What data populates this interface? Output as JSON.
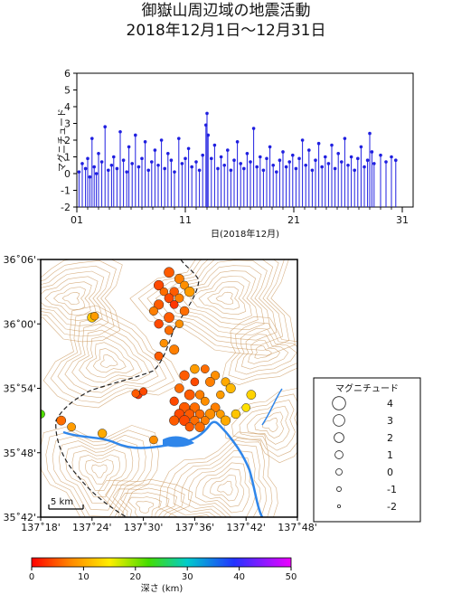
{
  "title_line1": "御嶽山周辺域の地震活動",
  "title_line2": "2018年12月1日〜12月31日",
  "chart_data": [
    {
      "type": "stem",
      "ylabel": "マグニチュード",
      "xlabel": "日(2018年12月)",
      "x_ticks": [
        "01",
        "11",
        "21",
        "31"
      ],
      "x_tick_values": [
        1,
        11,
        21,
        31
      ],
      "xlim": [
        1,
        32
      ],
      "ylim": [
        -2,
        6
      ],
      "y_ticks": [
        -2,
        -1,
        0,
        1,
        2,
        3,
        4,
        5,
        6
      ],
      "color": "#1f1fe0",
      "events": [
        [
          1.2,
          0.1
        ],
        [
          1.5,
          0.6
        ],
        [
          1.8,
          0.3
        ],
        [
          2.0,
          0.9
        ],
        [
          2.2,
          -0.2
        ],
        [
          2.4,
          2.1
        ],
        [
          2.6,
          0.4
        ],
        [
          2.8,
          0.0
        ],
        [
          3.0,
          1.2
        ],
        [
          3.3,
          0.7
        ],
        [
          3.6,
          2.8
        ],
        [
          3.9,
          0.2
        ],
        [
          4.2,
          0.5
        ],
        [
          4.4,
          1.0
        ],
        [
          4.7,
          0.3
        ],
        [
          5.0,
          2.5
        ],
        [
          5.3,
          0.8
        ],
        [
          5.6,
          0.1
        ],
        [
          5.8,
          1.6
        ],
        [
          6.1,
          0.6
        ],
        [
          6.4,
          2.3
        ],
        [
          6.7,
          0.4
        ],
        [
          7.0,
          0.9
        ],
        [
          7.3,
          1.9
        ],
        [
          7.6,
          0.2
        ],
        [
          7.9,
          0.7
        ],
        [
          8.2,
          1.4
        ],
        [
          8.5,
          0.5
        ],
        [
          8.8,
          2.0
        ],
        [
          9.1,
          0.3
        ],
        [
          9.4,
          1.2
        ],
        [
          9.7,
          0.8
        ],
        [
          10.0,
          0.1
        ],
        [
          10.4,
          2.1
        ],
        [
          10.7,
          0.6
        ],
        [
          11.0,
          0.9
        ],
        [
          11.3,
          1.5
        ],
        [
          11.6,
          0.4
        ],
        [
          12.0,
          0.7
        ],
        [
          12.3,
          0.2
        ],
        [
          12.6,
          1.1
        ],
        [
          12.9,
          2.9
        ],
        [
          13.0,
          3.6
        ],
        [
          13.1,
          2.3
        ],
        [
          13.4,
          0.9
        ],
        [
          13.7,
          1.7
        ],
        [
          14.0,
          0.3
        ],
        [
          14.3,
          1.0
        ],
        [
          14.6,
          0.5
        ],
        [
          14.9,
          1.4
        ],
        [
          15.2,
          0.2
        ],
        [
          15.5,
          0.8
        ],
        [
          15.8,
          1.9
        ],
        [
          16.1,
          0.6
        ],
        [
          16.4,
          0.3
        ],
        [
          16.7,
          1.2
        ],
        [
          17.0,
          0.7
        ],
        [
          17.3,
          2.7
        ],
        [
          17.6,
          0.4
        ],
        [
          17.9,
          1.0
        ],
        [
          18.2,
          0.2
        ],
        [
          18.5,
          0.9
        ],
        [
          18.8,
          1.6
        ],
        [
          19.1,
          0.5
        ],
        [
          19.4,
          0.1
        ],
        [
          19.7,
          0.8
        ],
        [
          20.0,
          1.3
        ],
        [
          20.3,
          0.4
        ],
        [
          20.6,
          0.7
        ],
        [
          20.9,
          1.1
        ],
        [
          21.2,
          0.3
        ],
        [
          21.5,
          0.9
        ],
        [
          21.8,
          2.0
        ],
        [
          22.1,
          0.5
        ],
        [
          22.4,
          1.4
        ],
        [
          22.7,
          0.2
        ],
        [
          23.0,
          0.8
        ],
        [
          23.3,
          1.8
        ],
        [
          23.6,
          0.4
        ],
        [
          23.9,
          1.0
        ],
        [
          24.2,
          0.6
        ],
        [
          24.5,
          1.7
        ],
        [
          24.8,
          0.3
        ],
        [
          25.1,
          1.2
        ],
        [
          25.4,
          0.7
        ],
        [
          25.7,
          2.1
        ],
        [
          26.0,
          0.5
        ],
        [
          26.3,
          1.0
        ],
        [
          26.6,
          0.2
        ],
        [
          26.9,
          0.9
        ],
        [
          27.2,
          1.6
        ],
        [
          27.5,
          0.4
        ],
        [
          27.8,
          0.8
        ],
        [
          28.0,
          2.4
        ],
        [
          28.2,
          1.3
        ],
        [
          28.4,
          0.6
        ],
        [
          29.0,
          1.1
        ],
        [
          29.5,
          0.7
        ],
        [
          30.0,
          1.0
        ],
        [
          30.4,
          0.8
        ]
      ]
    },
    {
      "type": "map-scatter",
      "lat_ticks": [
        "35˚42'",
        "35˚48'",
        "35˚54'",
        "36˚00'",
        "36˚06'"
      ],
      "lon_ticks": [
        "137˚18'",
        "137˚24'",
        "137˚30'",
        "137˚36'",
        "137˚42'",
        "137˚48'"
      ],
      "lon_range": [
        137.3,
        137.8
      ],
      "lat_range": [
        35.7,
        36.1
      ],
      "scale_bar_label": "5 km",
      "colorbar_label": "深さ (km)",
      "colorbar_ticks": [
        "0",
        "10",
        "20",
        "30",
        "40",
        "50"
      ],
      "colorbar_range": [
        0,
        50
      ],
      "legend_title": "マグニチュード",
      "legend_items": [
        "4",
        "3",
        "2",
        "1",
        "0",
        "-1",
        "-2"
      ],
      "events": [
        [
          137.55,
          36.08,
          2.2,
          5
        ],
        [
          137.57,
          36.07,
          1.8,
          7
        ],
        [
          137.53,
          36.06,
          2.0,
          4
        ],
        [
          137.58,
          36.06,
          1.2,
          8
        ],
        [
          137.56,
          36.05,
          1.5,
          5
        ],
        [
          137.59,
          36.05,
          2.1,
          9
        ],
        [
          137.54,
          36.05,
          1.0,
          6
        ],
        [
          137.55,
          36.04,
          1.7,
          4
        ],
        [
          137.57,
          36.04,
          1.4,
          7
        ],
        [
          137.53,
          36.03,
          1.9,
          5
        ],
        [
          137.56,
          36.03,
          1.1,
          3
        ],
        [
          137.58,
          36.02,
          1.6,
          6
        ],
        [
          137.52,
          36.02,
          1.3,
          7
        ],
        [
          137.55,
          36.01,
          2.2,
          5
        ],
        [
          137.57,
          36.0,
          1.0,
          8
        ],
        [
          137.53,
          36.0,
          1.5,
          4
        ],
        [
          137.4,
          36.01,
          1.8,
          12
        ],
        [
          137.405,
          36.012,
          1.0,
          9
        ],
        [
          137.3,
          35.86,
          1.2,
          22
        ],
        [
          137.55,
          35.99,
          1.4,
          6
        ],
        [
          137.54,
          35.97,
          1.0,
          8
        ],
        [
          137.56,
          35.96,
          1.9,
          7
        ],
        [
          137.53,
          35.95,
          1.3,
          5
        ],
        [
          137.6,
          35.93,
          1.6,
          9
        ],
        [
          137.62,
          35.93,
          1.2,
          6
        ],
        [
          137.58,
          35.92,
          2.0,
          5
        ],
        [
          137.64,
          35.92,
          1.4,
          8
        ],
        [
          137.6,
          35.91,
          1.1,
          4
        ],
        [
          137.63,
          35.91,
          1.8,
          7
        ],
        [
          137.66,
          35.91,
          1.3,
          10
        ],
        [
          137.57,
          35.9,
          1.6,
          6
        ],
        [
          137.59,
          35.89,
          2.3,
          5
        ],
        [
          137.61,
          35.89,
          1.5,
          7
        ],
        [
          137.65,
          35.89,
          1.0,
          9
        ],
        [
          137.67,
          35.9,
          1.9,
          11
        ],
        [
          137.56,
          35.88,
          1.4,
          4
        ],
        [
          137.58,
          35.87,
          2.4,
          5
        ],
        [
          137.6,
          35.87,
          2.0,
          6
        ],
        [
          137.62,
          35.88,
          1.2,
          8
        ],
        [
          137.64,
          35.87,
          1.7,
          7
        ],
        [
          137.57,
          35.86,
          2.1,
          4
        ],
        [
          137.59,
          35.86,
          1.8,
          5
        ],
        [
          137.61,
          35.86,
          1.5,
          6
        ],
        [
          137.63,
          35.86,
          2.2,
          8
        ],
        [
          137.65,
          35.86,
          1.1,
          9
        ],
        [
          137.56,
          35.85,
          1.9,
          5
        ],
        [
          137.58,
          35.85,
          2.3,
          4
        ],
        [
          137.6,
          35.85,
          1.6,
          6
        ],
        [
          137.62,
          35.85,
          1.3,
          7
        ],
        [
          137.66,
          35.85,
          1.9,
          10
        ],
        [
          137.59,
          35.84,
          1.4,
          5
        ],
        [
          137.61,
          35.84,
          2.0,
          6
        ],
        [
          137.68,
          35.86,
          1.5,
          12
        ],
        [
          137.7,
          35.87,
          1.1,
          14
        ],
        [
          137.71,
          35.89,
          1.7,
          13
        ],
        [
          137.49,
          35.89,
          1.0,
          3
        ],
        [
          137.5,
          35.895,
          0.8,
          4
        ],
        [
          137.485,
          35.892,
          0.9,
          5
        ],
        [
          137.34,
          35.85,
          1.7,
          6
        ],
        [
          137.36,
          35.84,
          1.2,
          9
        ],
        [
          137.42,
          35.83,
          1.5,
          10
        ],
        [
          137.52,
          35.82,
          1.1,
          8
        ]
      ]
    }
  ]
}
